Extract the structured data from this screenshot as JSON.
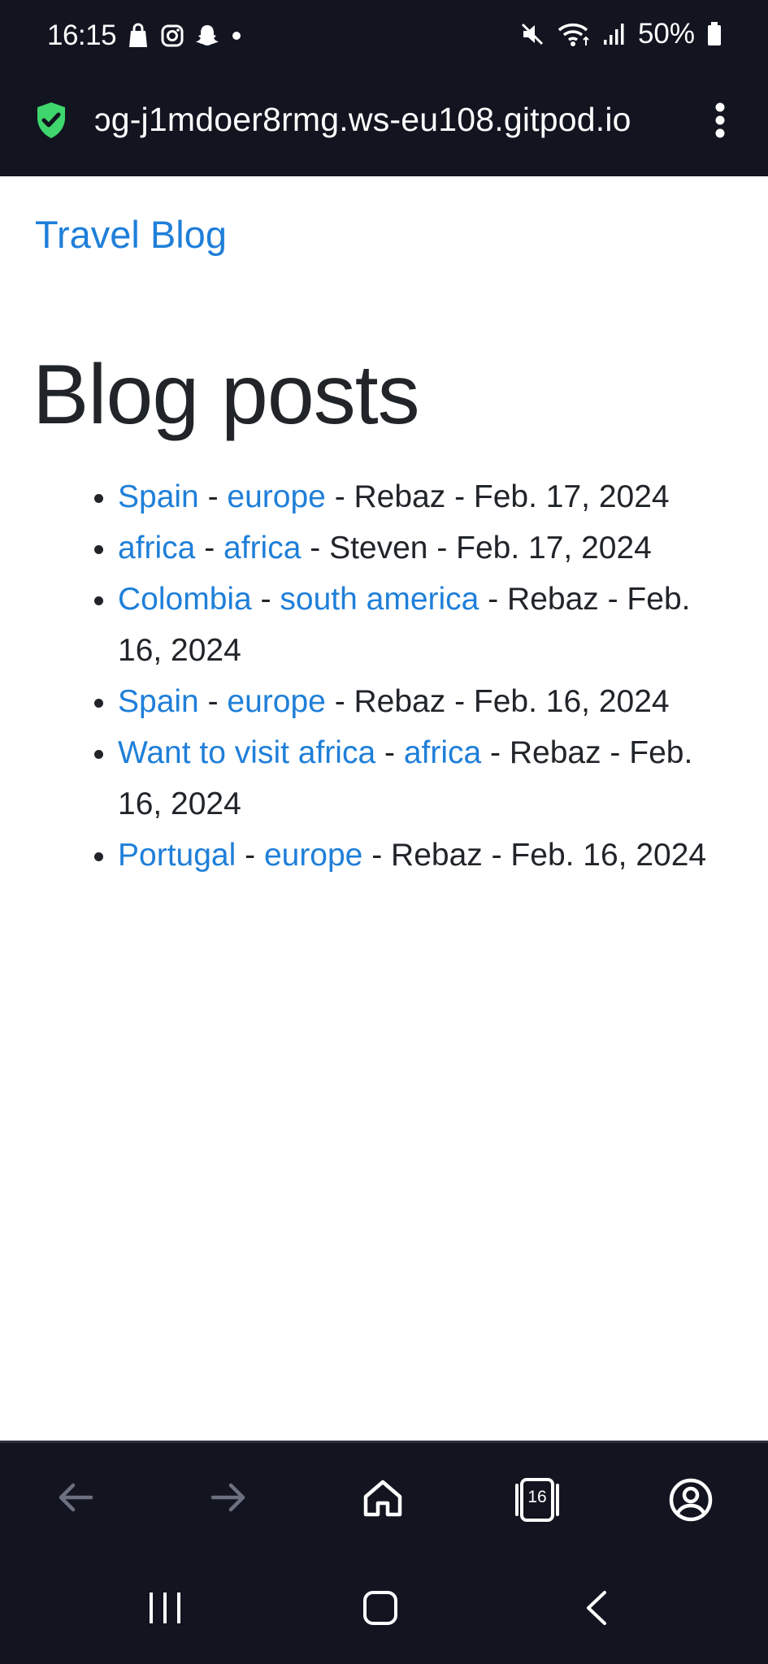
{
  "status_bar": {
    "time": "16:15",
    "battery": "50%",
    "icons": [
      "shopping-bag-icon",
      "instagram-icon",
      "snapchat-icon",
      "dot-icon",
      "mute-icon",
      "wifi-icon",
      "signal-icon",
      "battery-icon"
    ]
  },
  "url_bar": {
    "url": "ɔg-j1mdoer8rmg.ws-eu108.gitpod.io",
    "secure_color": "#3fd66d"
  },
  "page": {
    "brand": "Travel Blog",
    "heading": "Blog posts",
    "posts": [
      {
        "title": "Spain",
        "category": "europe",
        "rest": " - Rebaz - Feb. 17, 2024"
      },
      {
        "title": "africa",
        "category": "africa",
        "rest": " - Steven - Feb. 17, 2024"
      },
      {
        "title": "Colombia",
        "category": "south america",
        "rest": " - Rebaz - Feb. 16, 2024"
      },
      {
        "title": "Spain",
        "category": "europe",
        "rest": " - Rebaz - Feb. 16, 2024"
      },
      {
        "title": "Want to visit africa",
        "category": "africa",
        "rest": " - Rebaz - Feb. 16, 2024"
      },
      {
        "title": "Portugal",
        "category": "europe",
        "rest": " - Rebaz - Feb. 16, 2024"
      }
    ],
    "separator": " - ",
    "link_color": "#1f7fd9"
  },
  "browser_nav": {
    "tab_count": "16",
    "icons": [
      "back-arrow-icon",
      "forward-arrow-icon",
      "home-icon",
      "tabs-icon",
      "profile-icon"
    ]
  },
  "system_nav": {
    "icons": [
      "recent-apps-icon",
      "home-button-icon",
      "back-icon"
    ]
  }
}
